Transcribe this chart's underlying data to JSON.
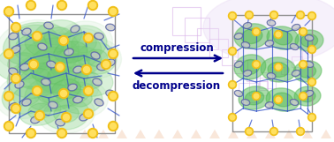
{
  "figsize": [
    3.78,
    1.61
  ],
  "dpi": 100,
  "background_color": "#ffffff",
  "arrow_color": "#00008b",
  "arrow_fontsize": 8.5,
  "arrow_fontweight": "bold",
  "compression_label": "compression",
  "decompression_label": "decompression",
  "sq_color": "#d8b0e8",
  "sq_color2": "#e8c8f0",
  "tri_color": "#f0c0a0",
  "tri_color2": "#e8b898"
}
